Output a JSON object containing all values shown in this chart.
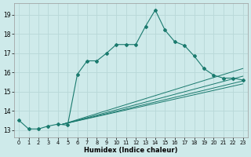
{
  "xlabel": "Humidex (Indice chaleur)",
  "background_color": "#ceeaea",
  "grid_color": "#b8d8d8",
  "line_color": "#1a7a6e",
  "xlim": [
    -0.5,
    23.5
  ],
  "ylim": [
    12.6,
    19.6
  ],
  "xticks": [
    0,
    1,
    2,
    3,
    4,
    5,
    6,
    7,
    8,
    9,
    10,
    11,
    12,
    13,
    14,
    15,
    16,
    17,
    18,
    19,
    20,
    21,
    22,
    23
  ],
  "yticks": [
    13,
    14,
    15,
    16,
    17,
    18,
    19
  ],
  "main_line": {
    "x": [
      0,
      1,
      2,
      3,
      4,
      5,
      6,
      7,
      8,
      9,
      10,
      11,
      12,
      13,
      14,
      15,
      16,
      17,
      18,
      19,
      20,
      21,
      22,
      23
    ],
    "y": [
      13.5,
      13.05,
      13.05,
      13.2,
      13.3,
      13.25,
      15.9,
      16.6,
      16.6,
      17.0,
      17.45,
      17.45,
      17.45,
      18.4,
      19.25,
      18.2,
      17.6,
      17.4,
      16.85,
      16.2,
      15.85,
      15.7,
      15.7,
      15.6
    ]
  },
  "straight_lines": [
    {
      "x": [
        4.5,
        23
      ],
      "y": [
        13.3,
        16.2
      ]
    },
    {
      "x": [
        4.5,
        23
      ],
      "y": [
        13.3,
        15.8
      ]
    },
    {
      "x": [
        4.5,
        23
      ],
      "y": [
        13.3,
        15.55
      ]
    },
    {
      "x": [
        4.5,
        23
      ],
      "y": [
        13.3,
        15.4
      ]
    }
  ]
}
